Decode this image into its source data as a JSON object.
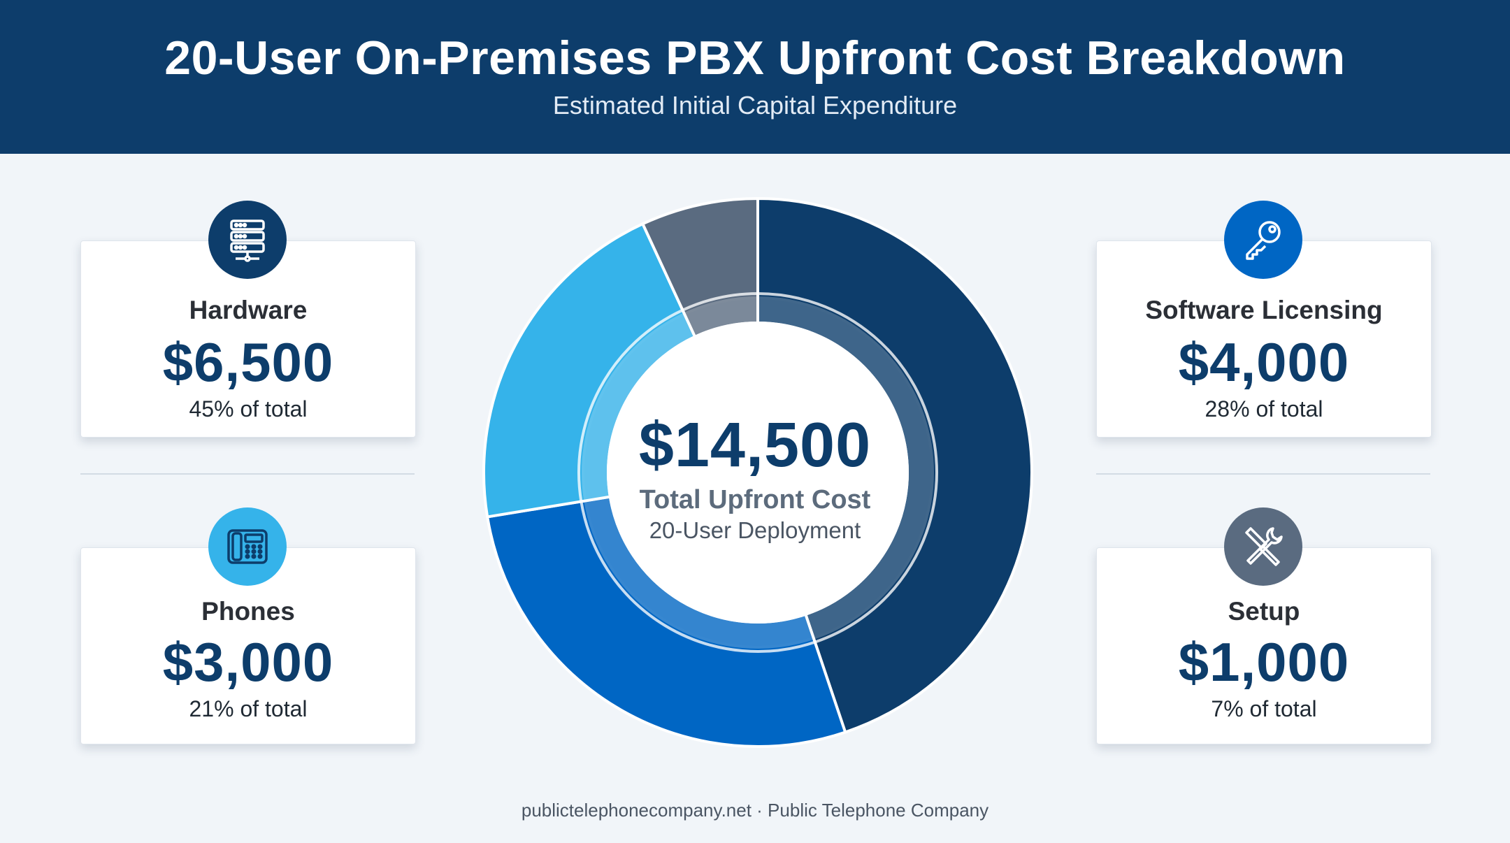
{
  "header": {
    "title": "20-User On-Premises PBX Upfront Cost Breakdown",
    "subtitle": "Estimated Initial Capital Expenditure"
  },
  "cards": {
    "hardware": {
      "label": "Hardware",
      "amount": "$6,500",
      "pct": "45% of total",
      "icon": "server-icon",
      "color": "#0d3d6b"
    },
    "software": {
      "label": "Software Licensing",
      "amount": "$4,000",
      "pct": "28% of total",
      "icon": "key-icon",
      "color": "#0066c4"
    },
    "phones": {
      "label": "Phones",
      "amount": "$3,000",
      "pct": "21% of total",
      "icon": "desk-phone-icon",
      "color": "#35b3ea"
    },
    "setup": {
      "label": "Setup",
      "amount": "$1,000",
      "pct": "7% of total",
      "icon": "tools-icon",
      "color": "#5a6b80"
    }
  },
  "center": {
    "total": "$14,500",
    "label": "Total Upfront Cost",
    "sub": "20-User Deployment"
  },
  "footer": "publictelephonecompany.net · Public Telephone Company",
  "chart_data": {
    "type": "pie",
    "categories": [
      "Hardware",
      "Software Licensing",
      "Phones",
      "Setup"
    ],
    "values": [
      6500,
      4000,
      3000,
      1000
    ],
    "percent_labels": [
      "45%",
      "28%",
      "21%",
      "7%"
    ],
    "colors": [
      "#0d3d6b",
      "#0066c4",
      "#35b3ea",
      "#5a6b80"
    ],
    "donut": true,
    "total": 14500
  }
}
